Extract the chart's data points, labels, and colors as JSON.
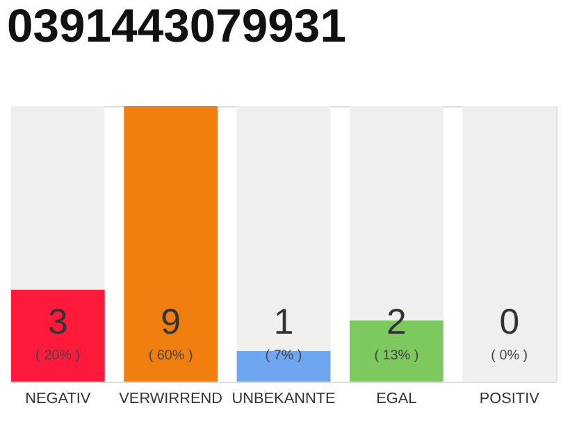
{
  "chart_data": {
    "type": "bar",
    "title": "0391443079931",
    "categories": [
      "NEGATIV",
      "VERWIRREND",
      "UNBEKANNTE",
      "EGAL",
      "POSITIV"
    ],
    "values": [
      3,
      9,
      1,
      2,
      0
    ],
    "colors": [
      "#ff1a3c",
      "#f07f0f",
      "#6ea6f0",
      "#7dc95e",
      "#cccccc"
    ],
    "data_labels": true,
    "annotations": [
      "( 20% )",
      "( 60% )",
      "( 7% )",
      "( 13% )",
      "( 0% )"
    ],
    "bands": [
      {
        "axis": "x",
        "from": "NEGATIV",
        "to": "NEGATIV",
        "color": "#efefef"
      },
      {
        "axis": "x",
        "from": "UNBEKANNTE",
        "to": "UNBEKANNTE",
        "color": "#efefef"
      },
      {
        "axis": "x",
        "from": "EGAL",
        "to": "EGAL",
        "color": "#efefef"
      },
      {
        "axis": "x",
        "from": "POSITIV",
        "to": "POSITIV",
        "color": "#efefef"
      }
    ],
    "ylim": [
      0,
      9
    ],
    "tick_labels": "x"
  }
}
